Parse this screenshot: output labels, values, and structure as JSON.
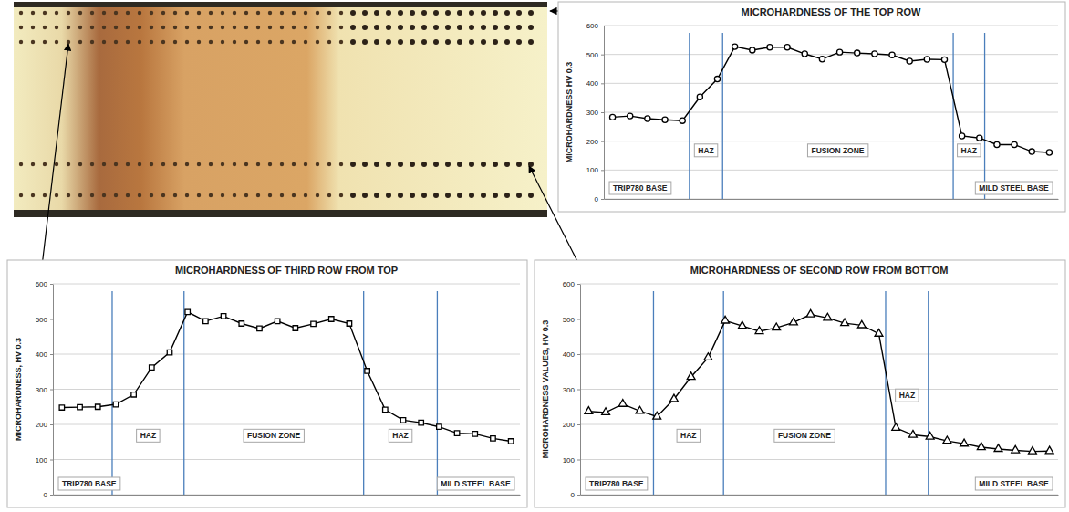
{
  "chart_data": [
    {
      "type": "line",
      "title": "MICROHARDNESS OF THE TOP ROW",
      "ylabel": "MICROHARDNESS HV 0.3",
      "x": [
        1,
        2,
        3,
        4,
        5,
        6,
        7,
        8,
        9,
        10,
        11,
        12,
        13,
        14,
        15,
        16,
        17,
        18,
        19,
        20,
        21,
        22,
        23,
        24,
        25,
        26
      ],
      "values": [
        283,
        287,
        278,
        274,
        271,
        353,
        415,
        527,
        515,
        525,
        525,
        502,
        484,
        508,
        505,
        502,
        498,
        477,
        483,
        482,
        218,
        211,
        188,
        188,
        164,
        161
      ],
      "xlim": [
        0.5,
        26.5
      ],
      "ylim": [
        0,
        600
      ],
      "yticks": [
        0,
        100,
        200,
        300,
        400,
        500,
        600
      ],
      "zone_boundaries": [
        5.4,
        7.3,
        20.5,
        22.3
      ],
      "annotations": [
        "TRIP780 BASE",
        "HAZ",
        "FUSION ZONE",
        "HAZ",
        "MILD STEEL BASE"
      ],
      "color": "#000000",
      "marker": "circle",
      "line_style": "solid",
      "grid": true,
      "tick_labels": "y"
    },
    {
      "type": "line",
      "title": "MICROHARDNESS OF THIRD ROW FROM TOP",
      "ylabel": "MICROHARDNESS, HV 0.3",
      "x": [
        1,
        2,
        3,
        4,
        5,
        6,
        7,
        8,
        9,
        10,
        11,
        12,
        13,
        14,
        15,
        16,
        17,
        18,
        19,
        20,
        21,
        22,
        23,
        24,
        25,
        26
      ],
      "values": [
        248,
        249,
        250,
        257,
        285,
        362,
        405,
        520,
        494,
        508,
        487,
        473,
        494,
        474,
        486,
        500,
        487,
        352,
        242,
        212,
        205,
        193,
        175,
        173,
        160,
        152
      ],
      "xlim": [
        0.5,
        26.5
      ],
      "ylim": [
        0,
        600
      ],
      "yticks": [
        0,
        100,
        200,
        300,
        400,
        500,
        600
      ],
      "zone_boundaries": [
        3.8,
        7.8,
        17.8,
        21.9
      ],
      "annotations": [
        "TRIP780 BASE",
        "HAZ",
        "FUSION ZONE",
        "HAZ",
        "MILD STEEL BASE"
      ],
      "color": "#000000",
      "marker": "square",
      "line_style": "solid",
      "grid": true,
      "tick_labels": "y"
    },
    {
      "type": "line",
      "title": "MICROHARDNESS OF SECOND ROW FROM BOTTOM",
      "ylabel": "MICROHARDNESS VALUES, HV 0.3",
      "x": [
        1,
        2,
        3,
        4,
        5,
        6,
        7,
        8,
        9,
        10,
        11,
        12,
        13,
        14,
        15,
        16,
        17,
        18,
        19,
        20,
        21,
        22,
        23,
        24,
        25,
        26,
        27,
        28
      ],
      "values": [
        237,
        234,
        258,
        238,
        222,
        272,
        335,
        390,
        495,
        480,
        465,
        475,
        490,
        513,
        503,
        488,
        482,
        458,
        190,
        170,
        165,
        153,
        145,
        135,
        130,
        126,
        123,
        124
      ],
      "xlim": [
        0.5,
        28.5
      ],
      "ylim": [
        0,
        600
      ],
      "yticks": [
        0,
        100,
        200,
        300,
        400,
        500,
        600
      ],
      "zone_boundaries": [
        4.8,
        8.9,
        18.4,
        20.9
      ],
      "annotations": [
        "TRIP780 BASE",
        "HAZ",
        "FUSION ZONE",
        "HAZ",
        "MILD STEEL BASE"
      ],
      "color": "#000000",
      "marker": "triangle",
      "line_style": "solid",
      "grid": true,
      "tick_labels": "y"
    }
  ]
}
